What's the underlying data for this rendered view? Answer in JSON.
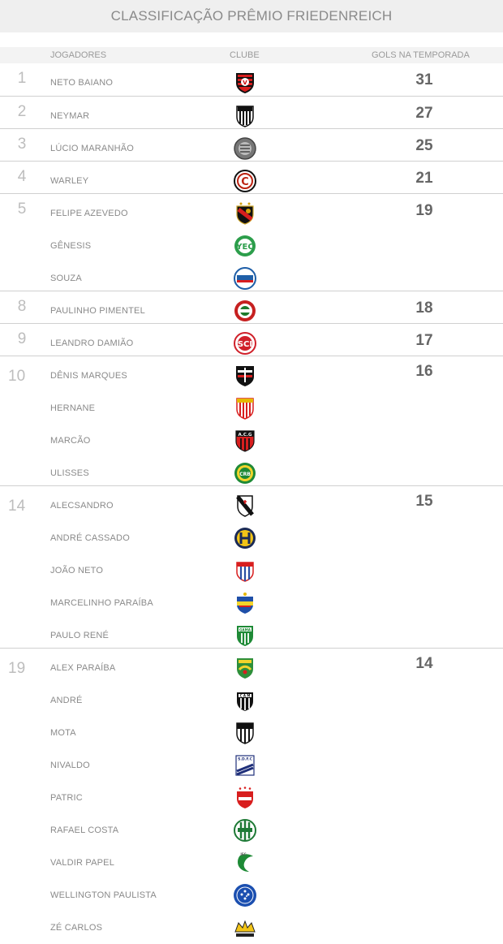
{
  "title": "CLASSIFICAÇÃO PRÊMIO FRIEDENREICH",
  "columns": {
    "players": "JOGADORES",
    "club": "CLUBE",
    "goals": "GOLS NA TEMPORADA"
  },
  "groups": [
    {
      "pos": "1",
      "goals": "31",
      "players": [
        {
          "name": "NETO BAIANO",
          "club_icon": "vitoria-badge-icon"
        }
      ]
    },
    {
      "pos": "2",
      "goals": "27",
      "players": [
        {
          "name": "NEYMAR",
          "club_icon": "santos-badge-icon"
        }
      ]
    },
    {
      "pos": "3",
      "goals": "25",
      "players": [
        {
          "name": "LÚCIO MARANHÃO",
          "club_icon": "ceara-gray-badge-icon"
        }
      ]
    },
    {
      "pos": "4",
      "goals": "21",
      "players": [
        {
          "name": "WARLEY",
          "club_icon": "campinense-badge-icon"
        }
      ]
    },
    {
      "pos": "5",
      "goals": "19",
      "players": [
        {
          "name": "FELIPE AZEVEDO",
          "club_icon": "sport-badge-icon"
        },
        {
          "name": "GÊNESIS",
          "club_icon": "green-circle-badge-icon"
        },
        {
          "name": "SOUZA",
          "club_icon": "bahia-badge-icon"
        }
      ]
    },
    {
      "pos": "8",
      "goals": "18",
      "players": [
        {
          "name": "PAULINHO PIMENTEL",
          "club_icon": "red-green-badge-icon"
        }
      ]
    },
    {
      "pos": "9",
      "goals": "17",
      "players": [
        {
          "name": "LEANDRO DAMIÃO",
          "club_icon": "internacional-badge-icon"
        }
      ]
    },
    {
      "pos": "10",
      "goals": "16",
      "players": [
        {
          "name": "DÊNIS MARQUES",
          "club_icon": "santa-cruz-badge-icon"
        },
        {
          "name": "HERNANE",
          "club_icon": "mogi-mirim-badge-icon"
        },
        {
          "name": "MARCÃO",
          "club_icon": "atletico-go-badge-icon"
        },
        {
          "name": "ULISSES",
          "club_icon": "green-yellow-badge-icon"
        }
      ]
    },
    {
      "pos": "14",
      "goals": "15",
      "players": [
        {
          "name": "ALECSANDRO",
          "club_icon": "vasco-badge-icon"
        },
        {
          "name": "ANDRÉ CASSADO",
          "club_icon": "yellow-navy-badge-icon"
        },
        {
          "name": "JOÃO NETO",
          "club_icon": "red-blue-shield-icon"
        },
        {
          "name": "MARCELINHO PARAÍBA",
          "club_icon": "blue-yellow-shield-icon"
        },
        {
          "name": "PAULO RENÉ",
          "club_icon": "gama-badge-icon"
        }
      ]
    },
    {
      "pos": "19",
      "goals": "14",
      "players": [
        {
          "name": "ALEX PARAÍBA",
          "club_icon": "green-yellow-shield-icon"
        },
        {
          "name": "ANDRÉ",
          "club_icon": "atletico-mg-badge-icon"
        },
        {
          "name": "MOTA",
          "club_icon": "ceara-badge-icon"
        },
        {
          "name": "NIVALDO",
          "club_icon": "sdfc-badge-icon"
        },
        {
          "name": "PATRIC",
          "club_icon": "vila-nova-badge-icon"
        },
        {
          "name": "RAFAEL COSTA",
          "club_icon": "green-stripes-badge-icon"
        },
        {
          "name": "VALDIR PAPEL",
          "club_icon": "icasa-badge-icon"
        },
        {
          "name": "WELLINGTON PAULISTA",
          "club_icon": "cruzeiro-badge-icon"
        },
        {
          "name": "ZÉ CARLOS",
          "club_icon": "yellow-crown-badge-icon"
        }
      ]
    }
  ],
  "colors": {
    "title_bg": "#efefef",
    "header_bg": "#f3f3f3",
    "text": "#8a8a8a",
    "rank": "#bdbdbd",
    "goals": "#666666",
    "divider": "#d0d0d0"
  }
}
